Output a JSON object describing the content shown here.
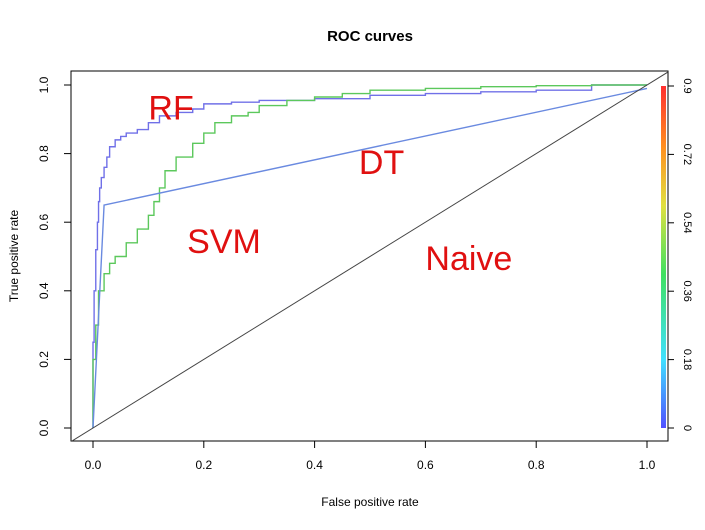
{
  "chart_data": {
    "type": "line",
    "title": "ROC curves",
    "xlabel": "False positive rate",
    "ylabel": "True positive rate",
    "xlim": [
      0,
      1
    ],
    "ylim": [
      0,
      1
    ],
    "xticks": [
      "0.0",
      "0.2",
      "0.4",
      "0.6",
      "0.8",
      "1.0"
    ],
    "yticks": [
      "0.0",
      "0.2",
      "0.4",
      "0.6",
      "0.8",
      "1.0"
    ],
    "grid": false,
    "colorbar": {
      "range": [
        0,
        0.9
      ],
      "ticks": [
        "0",
        "0.18",
        "0.36",
        "0.54",
        "0.72",
        "0.9"
      ],
      "colors": [
        "#5050ff",
        "#40e0ff",
        "#40e060",
        "#e0e040",
        "#ff9020",
        "#ff3030"
      ]
    },
    "annotations": [
      {
        "text": "RF",
        "x": 0.1,
        "y": 0.9
      },
      {
        "text": "SVM",
        "x": 0.17,
        "y": 0.51
      },
      {
        "text": "DT",
        "x": 0.48,
        "y": 0.74
      },
      {
        "text": "Naive",
        "x": 0.6,
        "y": 0.46
      }
    ],
    "series": [
      {
        "name": "RF",
        "color": "#7070e8",
        "x": [
          0,
          0.002,
          0.005,
          0.008,
          0.01,
          0.012,
          0.015,
          0.02,
          0.025,
          0.03,
          0.04,
          0.05,
          0.06,
          0.08,
          0.1,
          0.12,
          0.15,
          0.18,
          0.2,
          0.25,
          0.3,
          0.4,
          0.5,
          0.6,
          0.7,
          0.8,
          0.9,
          1.0
        ],
        "y": [
          0,
          0.25,
          0.4,
          0.52,
          0.6,
          0.66,
          0.7,
          0.73,
          0.76,
          0.79,
          0.82,
          0.84,
          0.85,
          0.86,
          0.87,
          0.89,
          0.91,
          0.92,
          0.93,
          0.945,
          0.95,
          0.955,
          0.96,
          0.97,
          0.975,
          0.98,
          0.985,
          1.0
        ]
      },
      {
        "name": "SVM",
        "color": "#5cc85c",
        "x": [
          0,
          0.005,
          0.01,
          0.02,
          0.03,
          0.04,
          0.06,
          0.08,
          0.1,
          0.11,
          0.12,
          0.13,
          0.15,
          0.18,
          0.2,
          0.22,
          0.25,
          0.28,
          0.3,
          0.35,
          0.4,
          0.45,
          0.5,
          0.6,
          0.7,
          0.8,
          0.9,
          1.0
        ],
        "y": [
          0,
          0.2,
          0.3,
          0.4,
          0.45,
          0.48,
          0.5,
          0.54,
          0.58,
          0.62,
          0.66,
          0.7,
          0.75,
          0.79,
          0.83,
          0.86,
          0.89,
          0.91,
          0.92,
          0.94,
          0.955,
          0.965,
          0.975,
          0.985,
          0.99,
          0.995,
          0.998,
          1.0
        ]
      },
      {
        "name": "DT",
        "color": "#6a8ae0",
        "x": [
          0,
          0.02,
          1.0
        ],
        "y": [
          0,
          0.65,
          0.99
        ]
      },
      {
        "name": "Naive",
        "color": "#444444",
        "x": [
          -0.04,
          1.04
        ],
        "y": [
          -0.04,
          1.04
        ]
      }
    ]
  }
}
